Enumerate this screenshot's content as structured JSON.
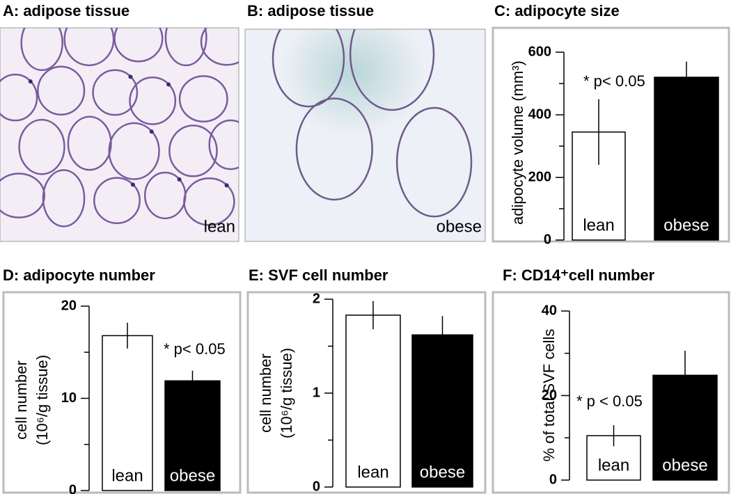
{
  "images": [
    {
      "title": "A: adipose tissue",
      "label": "lean"
    },
    {
      "title": "B: adipose tissue",
      "label": "obese"
    }
  ],
  "chart_data": [
    {
      "type": "bar",
      "title": "C: adipocyte size",
      "ylabel": [
        "adipocyte volume (mm³)"
      ],
      "annotation": "* p< 0.05",
      "categories": [
        "lean",
        "obese"
      ],
      "values": [
        345,
        520
      ],
      "errors": [
        105,
        50
      ],
      "colors": [
        "#ffffff",
        "#000000"
      ],
      "ylim": [
        0,
        600
      ],
      "yticks": [
        0,
        200,
        400,
        600
      ],
      "minor_yticks": [
        100,
        300,
        500
      ]
    },
    {
      "type": "bar",
      "title": "D: adipocyte number",
      "ylabel": [
        "cell number",
        "(10⁶/g tissue)"
      ],
      "annotation": "* p< 0.05",
      "categories": [
        "lean",
        "obese"
      ],
      "values": [
        16.8,
        11.9
      ],
      "errors": [
        1.4,
        1.1
      ],
      "colors": [
        "#ffffff",
        "#000000"
      ],
      "ylim": [
        0,
        20
      ],
      "yticks": [
        0,
        10,
        20
      ],
      "minor_yticks": [
        5,
        15
      ]
    },
    {
      "type": "bar",
      "title": "E: SVF cell number",
      "ylabel": [
        "cell number",
        "(10⁶/g tissue)"
      ],
      "categories": [
        "lean",
        "obese"
      ],
      "values": [
        1.83,
        1.62
      ],
      "errors": [
        0.15,
        0.2
      ],
      "colors": [
        "#ffffff",
        "#000000"
      ],
      "ylim": [
        0,
        2
      ],
      "yticks": [
        0,
        1,
        2
      ],
      "minor_yticks": [
        0.5,
        1.5
      ]
    },
    {
      "type": "bar",
      "title": "F: CD14⁺cell number",
      "ylabel": [
        "% of total SVF cells"
      ],
      "annotation": "* p < 0.05",
      "categories": [
        "lean",
        "obese"
      ],
      "values": [
        10.5,
        24.8
      ],
      "errors": [
        2.5,
        5.8
      ],
      "colors": [
        "#ffffff",
        "#000000"
      ],
      "ylim": [
        0,
        40
      ],
      "yticks": [
        0,
        20,
        40
      ],
      "minor_yticks": [
        10,
        30
      ]
    }
  ]
}
